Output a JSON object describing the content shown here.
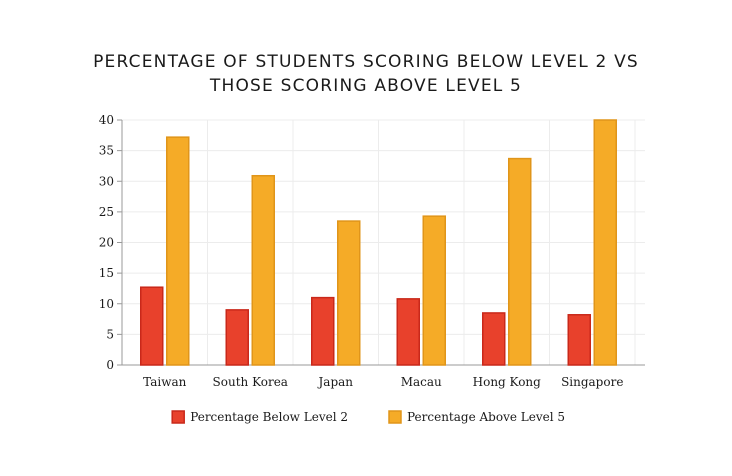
{
  "chart_data": {
    "type": "bar",
    "title_lines": [
      "PERCENTAGE OF STUDENTS SCORING BELOW LEVEL 2 VS",
      "THOSE SCORING ABOVE LEVEL 5"
    ],
    "categories": [
      "Taiwan",
      "South Korea",
      "Japan",
      "Macau",
      "Hong Kong",
      "Singapore"
    ],
    "series": [
      {
        "name": "Percentage Below Level 2",
        "values": [
          12.7,
          9.0,
          11.0,
          10.8,
          8.5,
          8.2
        ],
        "color": "#e8412c",
        "edge": "#c9281a"
      },
      {
        "name": "Percentage Above Level 5",
        "values": [
          37.2,
          30.9,
          23.5,
          24.3,
          33.7,
          40.0
        ],
        "color": "#f5ab27",
        "edge": "#e0951a"
      }
    ],
    "ylim": [
      0,
      40
    ],
    "yticks": [
      0,
      5,
      10,
      15,
      20,
      25,
      30,
      35,
      40
    ],
    "grid": true,
    "legend": "bottom",
    "xlabel": "",
    "ylabel": ""
  }
}
